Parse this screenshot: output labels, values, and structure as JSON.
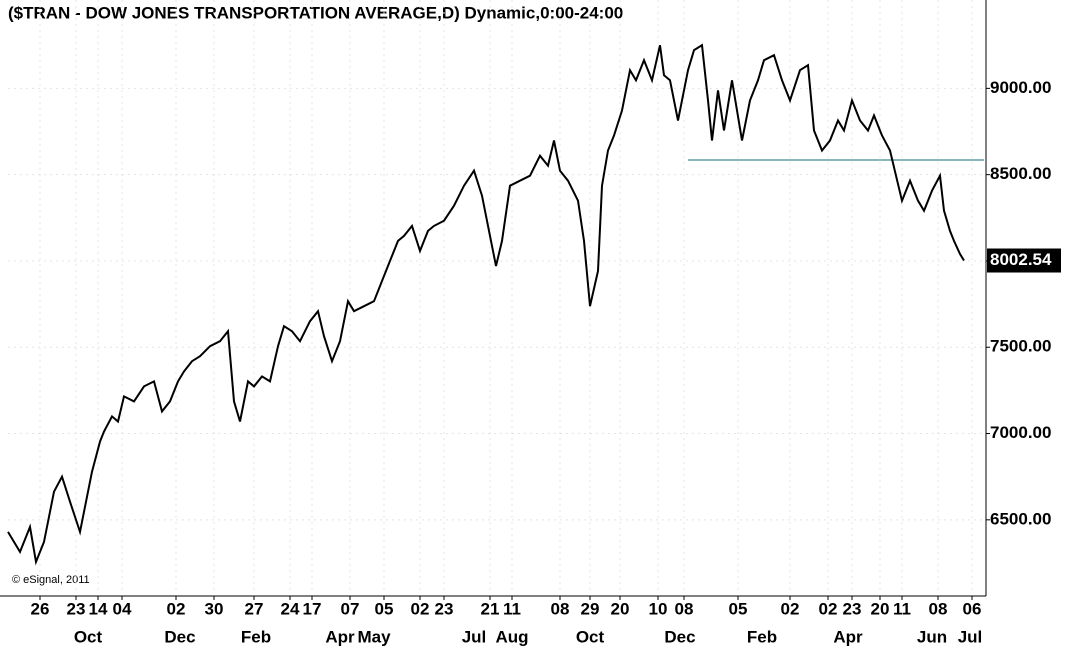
{
  "chart_data": {
    "type": "line",
    "title": "($TRAN - DOW JONES TRANSPORTATION AVERAGE,D) Dynamic,0:00-24:00",
    "annotation": "© eSignal, 2011",
    "color": "#000000",
    "grid": true,
    "x": [
      0,
      6,
      11,
      14,
      18,
      23,
      27,
      31,
      36,
      40,
      42,
      46,
      48,
      52,
      55,
      58,
      63,
      68,
      73,
      77,
      81,
      85,
      88,
      92,
      96,
      101,
      106,
      110,
      113,
      116,
      120,
      123,
      127,
      131,
      135,
      138,
      142,
      146,
      151,
      155,
      158,
      162,
      166,
      170,
      173,
      178,
      183,
      187,
      191,
      195,
      198,
      202,
      206,
      210,
      213,
      218,
      223,
      228,
      233,
      237,
      241,
      244,
      247,
      251,
      256,
      261,
      266,
      270,
      273,
      276,
      280,
      285,
      288,
      291,
      295,
      297,
      300,
      303,
      307,
      311,
      314,
      318,
      322,
      326,
      328,
      331,
      335,
      340,
      343,
      347,
      350,
      352,
      355,
      358,
      362,
      367,
      371,
      375,
      378,
      383,
      387,
      391,
      396,
      400,
      403,
      407,
      411,
      415,
      418,
      422,
      426,
      430,
      433,
      437,
      441,
      444,
      447,
      451,
      455,
      458,
      462,
      466,
      468,
      471,
      473,
      476,
      478
    ],
    "values": [
      6430,
      6314,
      6459,
      6256,
      6372,
      6663,
      6750,
      6605,
      6430,
      6663,
      6779,
      6953,
      7012,
      7099,
      7070,
      7215,
      7186,
      7273,
      7302,
      7128,
      7186,
      7302,
      7360,
      7419,
      7448,
      7506,
      7535,
      7593,
      7186,
      7070,
      7302,
      7273,
      7331,
      7302,
      7506,
      7622,
      7593,
      7535,
      7651,
      7709,
      7564,
      7419,
      7535,
      7767,
      7709,
      7738,
      7767,
      7884,
      8000,
      8116,
      8145,
      8203,
      8058,
      8174,
      8203,
      8233,
      8320,
      8436,
      8523,
      8378,
      8145,
      7971,
      8116,
      8436,
      8465,
      8494,
      8610,
      8552,
      8698,
      8523,
      8465,
      8349,
      8116,
      7738,
      7942,
      8436,
      8640,
      8727,
      8872,
      9105,
      9047,
      9163,
      9047,
      9250,
      9076,
      9047,
      8814,
      9105,
      9221,
      9250,
      8930,
      8698,
      8988,
      8756,
      9047,
      8698,
      8930,
      9047,
      9163,
      9192,
      9047,
      8930,
      9105,
      9134,
      8756,
      8640,
      8698,
      8814,
      8756,
      8930,
      8814,
      8756,
      8843,
      8727,
      8640,
      8494,
      8349,
      8465,
      8349,
      8291,
      8407,
      8494,
      8291,
      8174,
      8116,
      8040,
      8002.54
    ],
    "support_line": {
      "value": 8585,
      "start": 340,
      "color": "#5f9ea0"
    },
    "xlim": [
      0,
      488
    ],
    "ylim": [
      6076,
      9512
    ],
    "yticks": [
      {
        "value": 6500,
        "label": "6500.00"
      },
      {
        "value": 7000,
        "label": "7000.00"
      },
      {
        "value": 7500,
        "label": "7500.00"
      },
      {
        "value": 8000,
        "label": "8000.00"
      },
      {
        "value": 8500,
        "label": "8500.00"
      },
      {
        "value": 9000,
        "label": "9000.00"
      }
    ],
    "xticks": [
      {
        "value": 16,
        "label": "26"
      },
      {
        "value": 34,
        "label": "23"
      },
      {
        "value": 45,
        "label": "14"
      },
      {
        "value": 57,
        "label": "04"
      },
      {
        "value": 84,
        "label": "02"
      },
      {
        "value": 103,
        "label": "30"
      },
      {
        "value": 123,
        "label": "27"
      },
      {
        "value": 141,
        "label": "24"
      },
      {
        "value": 152,
        "label": "17"
      },
      {
        "value": 171,
        "label": "07"
      },
      {
        "value": 188,
        "label": "05"
      },
      {
        "value": 206,
        "label": "02"
      },
      {
        "value": 218,
        "label": "23"
      },
      {
        "value": 241,
        "label": "21"
      },
      {
        "value": 252,
        "label": "11"
      },
      {
        "value": 276,
        "label": "08"
      },
      {
        "value": 291,
        "label": "29"
      },
      {
        "value": 306,
        "label": "20"
      },
      {
        "value": 325,
        "label": "10"
      },
      {
        "value": 338,
        "label": "08"
      },
      {
        "value": 365,
        "label": "05"
      },
      {
        "value": 391,
        "label": "02"
      },
      {
        "value": 410,
        "label": "02"
      },
      {
        "value": 422,
        "label": "23"
      },
      {
        "value": 436,
        "label": "20"
      },
      {
        "value": 447,
        "label": "11"
      },
      {
        "value": 465,
        "label": "08"
      },
      {
        "value": 482,
        "label": "06"
      }
    ],
    "month_labels": [
      {
        "value": 40,
        "label": "Oct"
      },
      {
        "value": 86,
        "label": "Dec"
      },
      {
        "value": 124,
        "label": "Feb"
      },
      {
        "value": 166,
        "label": "Apr"
      },
      {
        "value": 183,
        "label": "May"
      },
      {
        "value": 233,
        "label": "Jul"
      },
      {
        "value": 252,
        "label": "Aug"
      },
      {
        "value": 291,
        "label": "Oct"
      },
      {
        "value": 336,
        "label": "Dec"
      },
      {
        "value": 377,
        "label": "Feb"
      },
      {
        "value": 420,
        "label": "Apr"
      },
      {
        "value": 462,
        "label": "Jun"
      },
      {
        "value": 481,
        "label": "Jul"
      }
    ]
  }
}
